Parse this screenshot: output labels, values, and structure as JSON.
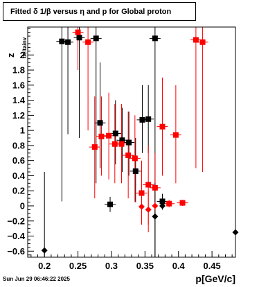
{
  "title": "Fitted δ 1/β versus η and p for Global proton",
  "footer_date": "Sun Jun 29 06:46:22 2025",
  "chart_data": {
    "type": "scatter",
    "title": "Fitted δ 1/β versus η and p for Global proton",
    "xlabel": "p[GeV/c]",
    "ylabel_main": "z",
    "ylabel_sub": "deltainv",
    "xlim": [
      0.175,
      0.485
    ],
    "ylim": [
      -0.68,
      2.37
    ],
    "xticks": [
      0.2,
      0.25,
      0.3,
      0.35,
      0.4,
      0.45
    ],
    "xtick_labels": [
      "0.2",
      "0.25",
      "0.3",
      "0.35",
      "0.4",
      "0.45"
    ],
    "yticks": [
      -0.6,
      -0.4,
      -0.2,
      0,
      0.2,
      0.4,
      0.6,
      0.8,
      1,
      1.2,
      1.4,
      1.6,
      1.8,
      2
    ],
    "ytick_labels": [
      "−0.6",
      "−0.4",
      "−0.2",
      "0",
      "0.2",
      "0.4",
      "0.6",
      "0.8",
      "1",
      "1.2",
      "1.4",
      "1.6",
      "1.8",
      "2"
    ],
    "grid": false,
    "legend": "none",
    "colors": {
      "black": "#000000",
      "red": "#ff0000"
    },
    "series": [
      {
        "color": "black",
        "marker": "square",
        "points": [
          {
            "x": 0.226,
            "y": 2.18,
            "ylo": 0.06,
            "yhi": 2.37
          },
          {
            "x": 0.235,
            "y": 2.17,
            "ylo": 0.95,
            "yhi": 2.37
          },
          {
            "x": 0.252,
            "y": 2.23,
            "ylo": 0.9,
            "yhi": 2.37
          },
          {
            "x": 0.277,
            "y": 2.22,
            "ylo": 0.3,
            "yhi": 2.37
          },
          {
            "x": 0.283,
            "y": 1.1,
            "ylo": 0.5,
            "yhi": 1.9
          },
          {
            "x": 0.298,
            "y": 0.02,
            "ylo": -0.08,
            "yhi": 0.12
          },
          {
            "x": 0.306,
            "y": 0.96,
            "ylo": 0.55,
            "yhi": 1.4
          },
          {
            "x": 0.316,
            "y": 0.87,
            "ylo": 0.45,
            "yhi": 1.3
          },
          {
            "x": 0.326,
            "y": 0.84,
            "ylo": 0.4,
            "yhi": 1.25
          },
          {
            "x": 0.336,
            "y": 0.46,
            "ylo": 0.05,
            "yhi": 0.9
          },
          {
            "x": 0.346,
            "y": 1.14,
            "ylo": 0.7,
            "yhi": 1.6
          },
          {
            "x": 0.355,
            "y": 1.15,
            "ylo": 0.7,
            "yhi": 1.6
          },
          {
            "x": 0.365,
            "y": 2.22,
            "ylo": -0.68,
            "yhi": 2.37
          },
          {
            "x": 0.376,
            "y": 0.06,
            "ylo": -0.05,
            "yhi": 0.16
          }
        ]
      },
      {
        "color": "red",
        "marker": "square",
        "points": [
          {
            "x": 0.25,
            "y": 2.3,
            "ylo": 1.8,
            "yhi": 2.37
          },
          {
            "x": 0.265,
            "y": 2.17,
            "ylo": 1.0,
            "yhi": 2.37
          },
          {
            "x": 0.275,
            "y": 0.78,
            "ylo": 0.1,
            "yhi": 1.45
          },
          {
            "x": 0.285,
            "y": 0.92,
            "ylo": 0.4,
            "yhi": 1.45
          },
          {
            "x": 0.296,
            "y": 0.93,
            "ylo": 0.35,
            "yhi": 1.5
          },
          {
            "x": 0.305,
            "y": 0.82,
            "ylo": 0.3,
            "yhi": 1.35
          },
          {
            "x": 0.315,
            "y": 0.82,
            "ylo": 0.3,
            "yhi": 1.35
          },
          {
            "x": 0.325,
            "y": 0.67,
            "ylo": 0.1,
            "yhi": 1.25
          },
          {
            "x": 0.335,
            "y": 0.63,
            "ylo": 0.05,
            "yhi": 1.2
          },
          {
            "x": 0.345,
            "y": 0.17,
            "ylo": -0.25,
            "yhi": 0.6
          },
          {
            "x": 0.355,
            "y": 0.28,
            "ylo": -0.25,
            "yhi": 0.8
          },
          {
            "x": 0.365,
            "y": 0.24,
            "ylo": -0.2,
            "yhi": 0.7
          },
          {
            "x": 0.376,
            "y": 1.05,
            "ylo": 0.4,
            "yhi": 1.7
          },
          {
            "x": 0.386,
            "y": 0.03,
            "ylo": -0.02,
            "yhi": 0.08
          },
          {
            "x": 0.396,
            "y": 0.94,
            "ylo": 0.3,
            "yhi": 1.6
          },
          {
            "x": 0.406,
            "y": 0.04,
            "ylo": 0.0,
            "yhi": 0.08
          },
          {
            "x": 0.426,
            "y": 2.2,
            "ylo": 0.5,
            "yhi": 2.37
          },
          {
            "x": 0.436,
            "y": 2.17,
            "ylo": 0.45,
            "yhi": 2.37
          }
        ]
      },
      {
        "color": "black",
        "marker": "diamond",
        "points": [
          {
            "x": 0.2,
            "y": -0.59,
            "ylo": -0.68,
            "yhi": 0.45
          },
          {
            "x": 0.365,
            "y": -0.14,
            "ylo": -0.68,
            "yhi": 0.3
          },
          {
            "x": 0.376,
            "y": 0.0,
            "ylo": -0.05,
            "yhi": 0.05
          },
          {
            "x": 0.485,
            "y": -0.35,
            "ylo": -0.68,
            "yhi": 2.37
          }
        ]
      },
      {
        "color": "red",
        "marker": "diamond",
        "points": [
          {
            "x": 0.345,
            "y": -0.01,
            "ylo": -0.2,
            "yhi": 0.15
          },
          {
            "x": 0.355,
            "y": -0.05,
            "ylo": -0.35,
            "yhi": 0.2
          },
          {
            "x": 0.365,
            "y": 0.0,
            "ylo": -0.05,
            "yhi": 0.05
          }
        ]
      }
    ]
  }
}
